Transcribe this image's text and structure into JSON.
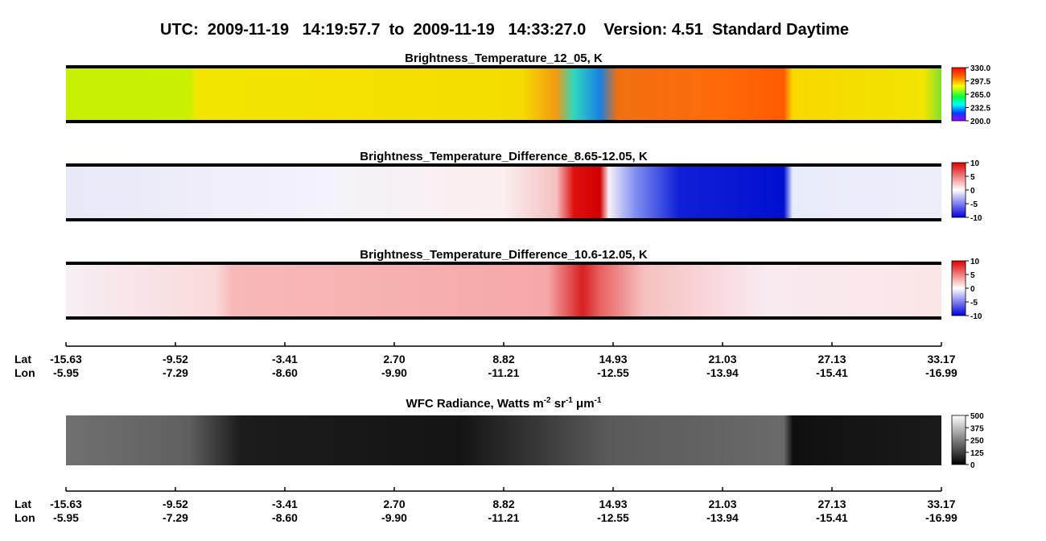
{
  "header": {
    "title": "UTC:  2009-11-19   14:19:57.7  to  2009-11-19   14:33:27.0    Version: 4.51  Standard Daytime"
  },
  "panels": [
    {
      "title": "Brightness_Temperature_12_05, K",
      "colorbar": [
        "330.0",
        "297.5",
        "265.0",
        "232.5",
        "200.0"
      ]
    },
    {
      "title": "Brightness_Temperature_Difference_8.65-12.05, K",
      "colorbar": [
        "10",
        "5",
        "0",
        "-5",
        "-10"
      ]
    },
    {
      "title": "Brightness_Temperature_Difference_10.6-12.05, K",
      "colorbar": [
        "10",
        "5",
        "0",
        "-5",
        "-10"
      ]
    },
    {
      "title_parts": [
        "WFC Radiance, Watts m",
        "-2",
        " sr",
        "-1",
        " μm",
        "-1"
      ],
      "colorbar": [
        "500",
        "375",
        "250",
        "125",
        "0"
      ]
    }
  ],
  "axes": [
    {
      "row_labels": [
        "Lat",
        "Lon"
      ],
      "lat": [
        "-15.63",
        "-9.52",
        "-3.41",
        "2.70",
        "8.82",
        "14.93",
        "21.03",
        "27.13",
        "33.17"
      ],
      "lon": [
        "-5.95",
        "-7.29",
        "-8.60",
        "-9.90",
        "-11.21",
        "-12.55",
        "-13.94",
        "-15.41",
        "-16.99"
      ]
    },
    {
      "row_labels": [
        "Lat",
        "Lon"
      ],
      "lat": [
        "-15.63",
        "-9.52",
        "-3.41",
        "2.70",
        "8.82",
        "14.93",
        "21.03",
        "27.13",
        "33.17"
      ],
      "lon": [
        "-5.95",
        "-7.29",
        "-8.60",
        "-9.90",
        "-11.21",
        "-12.55",
        "-13.94",
        "-15.41",
        "-16.99"
      ]
    }
  ]
}
